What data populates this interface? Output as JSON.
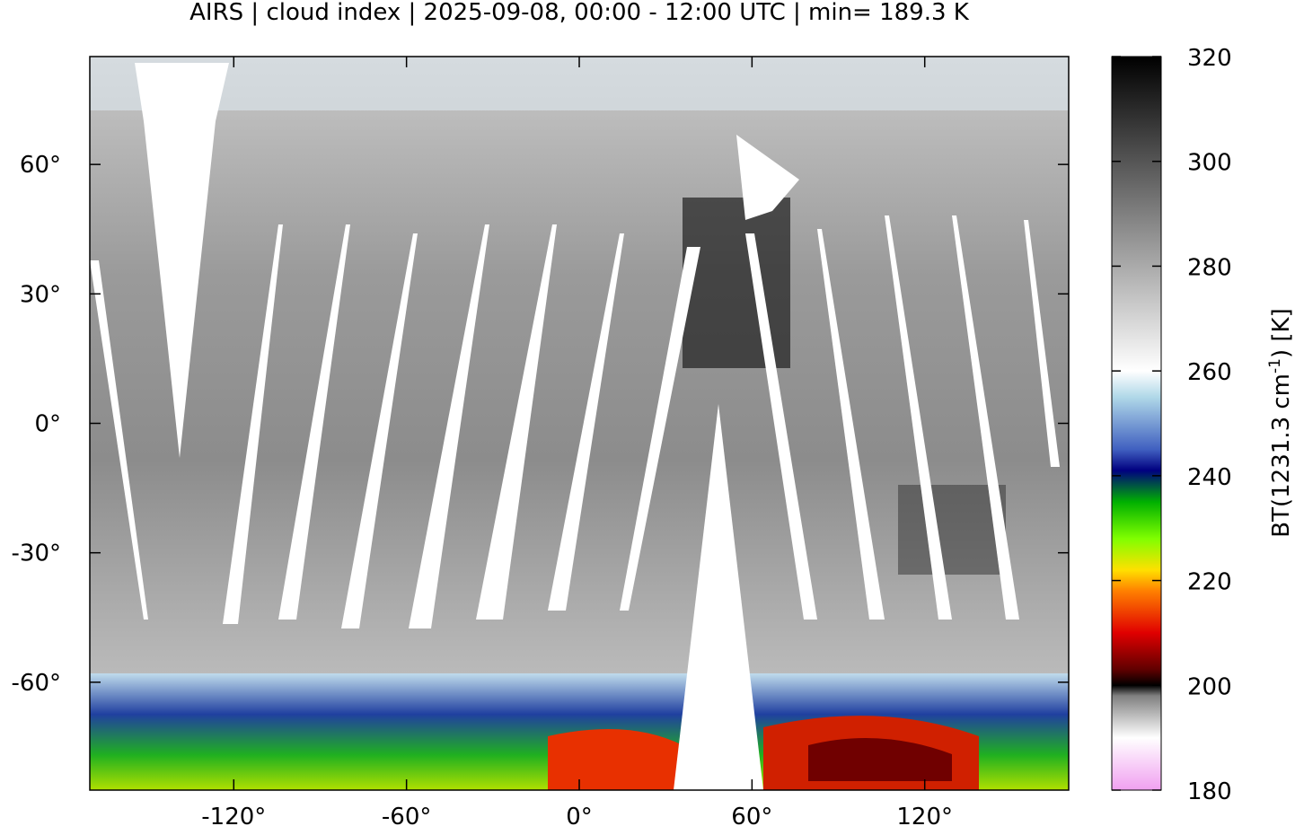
{
  "map": {
    "title": "AIRS | cloud index | 2025-09-08, 00:00 - 12:00 UTC | min= 189.3 K",
    "xlim": [
      -170,
      170
    ],
    "ylim": [
      -85,
      85
    ],
    "xticks": [
      {
        "value": -120,
        "label": "-120°"
      },
      {
        "value": -60,
        "label": "-60°"
      },
      {
        "value": 0,
        "label": "0°"
      },
      {
        "value": 60,
        "label": "60°"
      },
      {
        "value": 120,
        "label": "120°"
      }
    ],
    "yticks": [
      {
        "value": -60,
        "label": "-60°"
      },
      {
        "value": -30,
        "label": "-30°"
      },
      {
        "value": 0,
        "label": "0°"
      },
      {
        "value": 30,
        "label": "30°"
      },
      {
        "value": 60,
        "label": "60°"
      }
    ]
  },
  "colorbar": {
    "lim": [
      180,
      320
    ],
    "ticks": [
      180,
      200,
      220,
      240,
      260,
      280,
      300,
      320
    ],
    "label": [
      "BT(1231.3 cm",
      "-1",
      ") [K]"
    ],
    "colormap": [
      {
        "value": 180,
        "color": "#f0a0f0"
      },
      {
        "value": 190,
        "color": "#ffffff"
      },
      {
        "value": 198,
        "color": "#808080"
      },
      {
        "value": 200,
        "color": "#000000"
      },
      {
        "value": 203,
        "color": "#600000"
      },
      {
        "value": 210,
        "color": "#e00000"
      },
      {
        "value": 218,
        "color": "#ff8000"
      },
      {
        "value": 222,
        "color": "#ffe000"
      },
      {
        "value": 228,
        "color": "#80ff00"
      },
      {
        "value": 235,
        "color": "#00b000"
      },
      {
        "value": 241,
        "color": "#000080"
      },
      {
        "value": 245,
        "color": "#4060c0"
      },
      {
        "value": 255,
        "color": "#b0d8e8"
      },
      {
        "value": 260,
        "color": "#ffffff"
      },
      {
        "value": 320,
        "color": "#000000"
      }
    ]
  }
}
